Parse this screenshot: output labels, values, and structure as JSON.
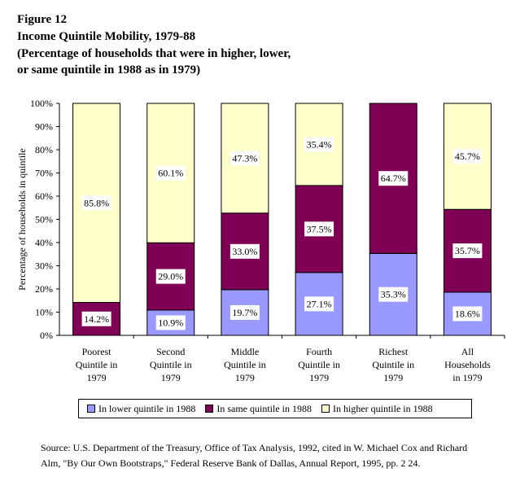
{
  "header": {
    "figure_label": "Figure 12",
    "title": "Income Quintile Mobility, 1979-88",
    "subtitle_line1": "(Percentage of households that were in higher, lower,",
    "subtitle_line2": "or same quintile in 1988 as in 1979)"
  },
  "chart_data": {
    "type": "bar",
    "stacked": true,
    "categories": [
      [
        "Poorest",
        "Quintile in",
        "1979"
      ],
      [
        "Second",
        "Quintile in",
        "1979"
      ],
      [
        "Middle",
        "Quintile in",
        "1979"
      ],
      [
        "Fourth",
        "Quintile in",
        "1979"
      ],
      [
        "Richest",
        "Quintile in",
        "1979"
      ],
      [
        "All",
        "Households",
        "in 1979"
      ]
    ],
    "series": [
      {
        "name": "In lower quintile in 1988",
        "color": "#9999ff",
        "values": [
          null,
          10.9,
          19.7,
          27.1,
          35.3,
          18.6
        ]
      },
      {
        "name": "In same quintile in 1988",
        "color": "#800055",
        "values": [
          14.2,
          29.0,
          33.0,
          37.5,
          64.7,
          35.7
        ]
      },
      {
        "name": "In higher quintile in 1988",
        "color": "#ffffcc",
        "values": [
          85.8,
          60.1,
          47.3,
          35.4,
          null,
          45.7
        ]
      }
    ],
    "data_labels": [
      [
        null,
        "10.9%",
        "19.7%",
        "27.1%",
        "35.3%",
        "18.6%"
      ],
      [
        "14.2%",
        "29.0%",
        "33.0%",
        "37.5%",
        "64.7%",
        "35.7%"
      ],
      [
        "85.8%",
        "60.1%",
        "47.3%",
        "35.4%",
        null,
        "45.7%"
      ]
    ],
    "ylabel": "Percentage of households in quintile",
    "ylim": [
      0,
      100
    ],
    "yticks": [
      "0%",
      "10%",
      "20%",
      "30%",
      "40%",
      "50%",
      "60%",
      "70%",
      "80%",
      "90%",
      "100%"
    ],
    "legend_position": "bottom"
  },
  "source_text": "Source: U.S. Department of the Treasury, Office of Tax Analysis, 1992, cited in W. Michael Cox and Richard Alm, \"By Our Own Bootstraps,\" Federal Reserve Bank of Dallas, Annual Report, 1995, pp. 2 24."
}
